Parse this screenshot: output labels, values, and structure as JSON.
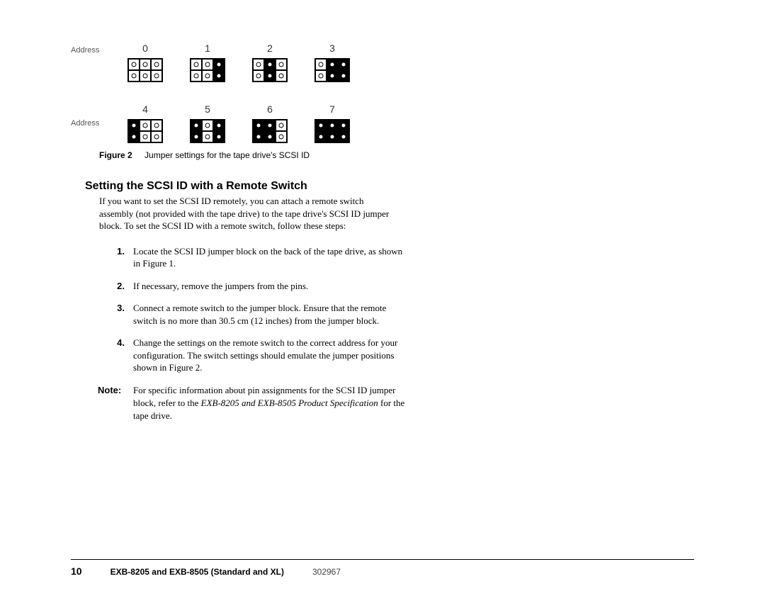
{
  "diagram": {
    "row_label": "Address",
    "rows": [
      {
        "addresses": [
          "0",
          "1",
          "2",
          "3"
        ]
      },
      {
        "addresses": [
          "4",
          "5",
          "6",
          "7"
        ]
      }
    ],
    "jumper_patterns": {
      "0": [
        [
          0,
          0,
          0
        ],
        [
          0,
          0,
          0
        ]
      ],
      "1": [
        [
          0,
          0,
          1
        ],
        [
          0,
          0,
          1
        ]
      ],
      "2": [
        [
          0,
          1,
          0
        ],
        [
          0,
          1,
          0
        ]
      ],
      "3": [
        [
          0,
          1,
          1
        ],
        [
          0,
          1,
          1
        ]
      ],
      "4": [
        [
          1,
          0,
          0
        ],
        [
          1,
          0,
          0
        ]
      ],
      "5": [
        [
          1,
          0,
          1
        ],
        [
          1,
          0,
          1
        ]
      ],
      "6": [
        [
          1,
          1,
          0
        ],
        [
          1,
          1,
          0
        ]
      ],
      "7": [
        [
          1,
          1,
          1
        ],
        [
          1,
          1,
          1
        ]
      ]
    }
  },
  "caption": {
    "label": "Figure 2",
    "text": "Jumper settings for the tape drive's SCSI ID"
  },
  "section": {
    "heading": "Setting the SCSI ID with a Remote Switch",
    "intro": "If you want to set the SCSI ID remotely, you can attach a remote switch assembly (not provided with the tape drive) to the tape drive's SCSI ID jumper block. To set the SCSI ID with a remote switch, follow these steps:"
  },
  "steps": [
    {
      "num": "1.",
      "text": "Locate the SCSI ID jumper block on the back of the tape drive, as shown in Figure 1."
    },
    {
      "num": "2.",
      "text": "If necessary, remove the jumpers from the pins."
    },
    {
      "num": "3.",
      "text": "Connect a remote switch to the jumper block. Ensure that the remote switch is no more than 30.5 cm (12 inches) from the jumper block."
    },
    {
      "num": "4.",
      "text": "Change the settings on the remote switch to the correct address for your configuration. The switch settings should emulate the jumper positions shown in Figure 2."
    }
  ],
  "note": {
    "label": "Note:",
    "before": "For specific information about pin assignments for the SCSI ID jumper block, refer to the ",
    "italic": "EXB-8205 and EXB-8505 Product Specification",
    "after": " for the tape drive."
  },
  "footer": {
    "page": "10",
    "title": "EXB-8205 and EXB-8505 (Standard and XL)",
    "docnum": "302967"
  },
  "colors": {
    "text": "#000000",
    "bg": "#ffffff",
    "muted": "#555555"
  }
}
